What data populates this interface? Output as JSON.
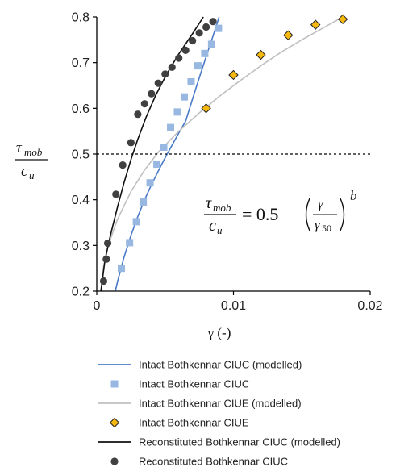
{
  "chart_data": {
    "type": "scatter",
    "title": "",
    "xlabel": "γ (-)",
    "ylabel": {
      "num": "τ",
      "num_sub": "mob",
      "den": "c",
      "den_sub": "u"
    },
    "xlim": [
      0,
      0.02
    ],
    "ylim": [
      0.2,
      0.8
    ],
    "xticks": [
      0,
      0.01,
      0.02
    ],
    "xtick_labels": [
      "0",
      "0.01",
      "0.02"
    ],
    "yticks": [
      0.2,
      0.3,
      0.4,
      0.5,
      0.6,
      0.7,
      0.8
    ],
    "ytick_labels": [
      "0.2",
      "0.3",
      "0.4",
      "0.5",
      "0.6",
      "0.7",
      "0.8"
    ],
    "grid": false,
    "reference_line": {
      "y": 0.5,
      "style": "dashed"
    },
    "equation": {
      "lhs_num": "τ",
      "lhs_num_sub": "mob",
      "lhs_den": "c",
      "lhs_den_sub": "u",
      "rhs_coef": "= 0.5",
      "frac_num": "γ",
      "frac_den": "γ",
      "frac_den_sub": "50",
      "exponent": "b"
    },
    "legend_position": "bottom",
    "series": [
      {
        "name": "Intact Bothkennar CIUC (modelled)",
        "kind": "line",
        "color": "#4a7ac8",
        "x": [
          0.00135,
          0.0016,
          0.002,
          0.0025,
          0.003,
          0.0035,
          0.004,
          0.0045,
          0.005,
          0.0055,
          0.006,
          0.0065,
          0.007,
          0.0075,
          0.008,
          0.0085,
          0.00895
        ],
        "y": [
          0.2,
          0.23,
          0.275,
          0.322,
          0.363,
          0.4,
          0.433,
          0.463,
          0.492,
          0.519,
          0.546,
          0.572,
          0.62,
          0.667,
          0.713,
          0.758,
          0.8
        ]
      },
      {
        "name": "Intact Bothkennar CIUC",
        "kind": "marker",
        "marker": "square",
        "color": "#98b8e2",
        "x": [
          0.0018,
          0.0024,
          0.0029,
          0.0034,
          0.0039,
          0.0044,
          0.0049,
          0.0054,
          0.0059,
          0.0064,
          0.0069,
          0.0074,
          0.0079,
          0.0084,
          0.0089
        ],
        "y": [
          0.25,
          0.306,
          0.352,
          0.395,
          0.437,
          0.478,
          0.515,
          0.558,
          0.592,
          0.625,
          0.658,
          0.693,
          0.72,
          0.74,
          0.775
        ]
      },
      {
        "name": "Intact Bothkennar CIUE (modelled)",
        "kind": "line",
        "color": "#c0c0c0",
        "x": [
          0.0004,
          0.0008,
          0.0015,
          0.0025,
          0.0035,
          0.0045,
          0.006,
          0.0075,
          0.009,
          0.0105,
          0.012,
          0.0135,
          0.015,
          0.0165,
          0.018
        ],
        "y": [
          0.24,
          0.297,
          0.356,
          0.418,
          0.465,
          0.504,
          0.55,
          0.59,
          0.627,
          0.661,
          0.693,
          0.723,
          0.75,
          0.775,
          0.8
        ]
      },
      {
        "name": "Intact Bothkennar CIUE",
        "kind": "marker",
        "marker": "diamond",
        "color": "#f5b80f",
        "x": [
          0.008,
          0.01,
          0.012,
          0.014,
          0.016,
          0.018
        ],
        "y": [
          0.6,
          0.673,
          0.717,
          0.76,
          0.783,
          0.795
        ]
      },
      {
        "name": "Reconstituted Bothkennar CIUC (modelled)",
        "kind": "line",
        "color": "#111111",
        "x": [
          0.0003,
          0.0006,
          0.001,
          0.0015,
          0.002,
          0.0025,
          0.003,
          0.0036,
          0.0043,
          0.0051,
          0.006,
          0.007,
          0.0078
        ],
        "y": [
          0.2,
          0.268,
          0.322,
          0.382,
          0.438,
          0.488,
          0.532,
          0.58,
          0.628,
          0.674,
          0.719,
          0.763,
          0.8
        ]
      },
      {
        "name": "Reconstituted Bothkennar CIUC",
        "kind": "marker",
        "marker": "circle",
        "color": "#404040",
        "x": [
          0.0005,
          0.0007,
          0.0008,
          0.0014,
          0.0019,
          0.0025,
          0.003,
          0.0035,
          0.004,
          0.0045,
          0.005,
          0.0055,
          0.006,
          0.0065,
          0.007,
          0.0075,
          0.008,
          0.0085
        ],
        "y": [
          0.222,
          0.27,
          0.305,
          0.412,
          0.476,
          0.525,
          0.587,
          0.61,
          0.632,
          0.655,
          0.675,
          0.69,
          0.71,
          0.727,
          0.748,
          0.765,
          0.778,
          0.79
        ]
      }
    ]
  }
}
